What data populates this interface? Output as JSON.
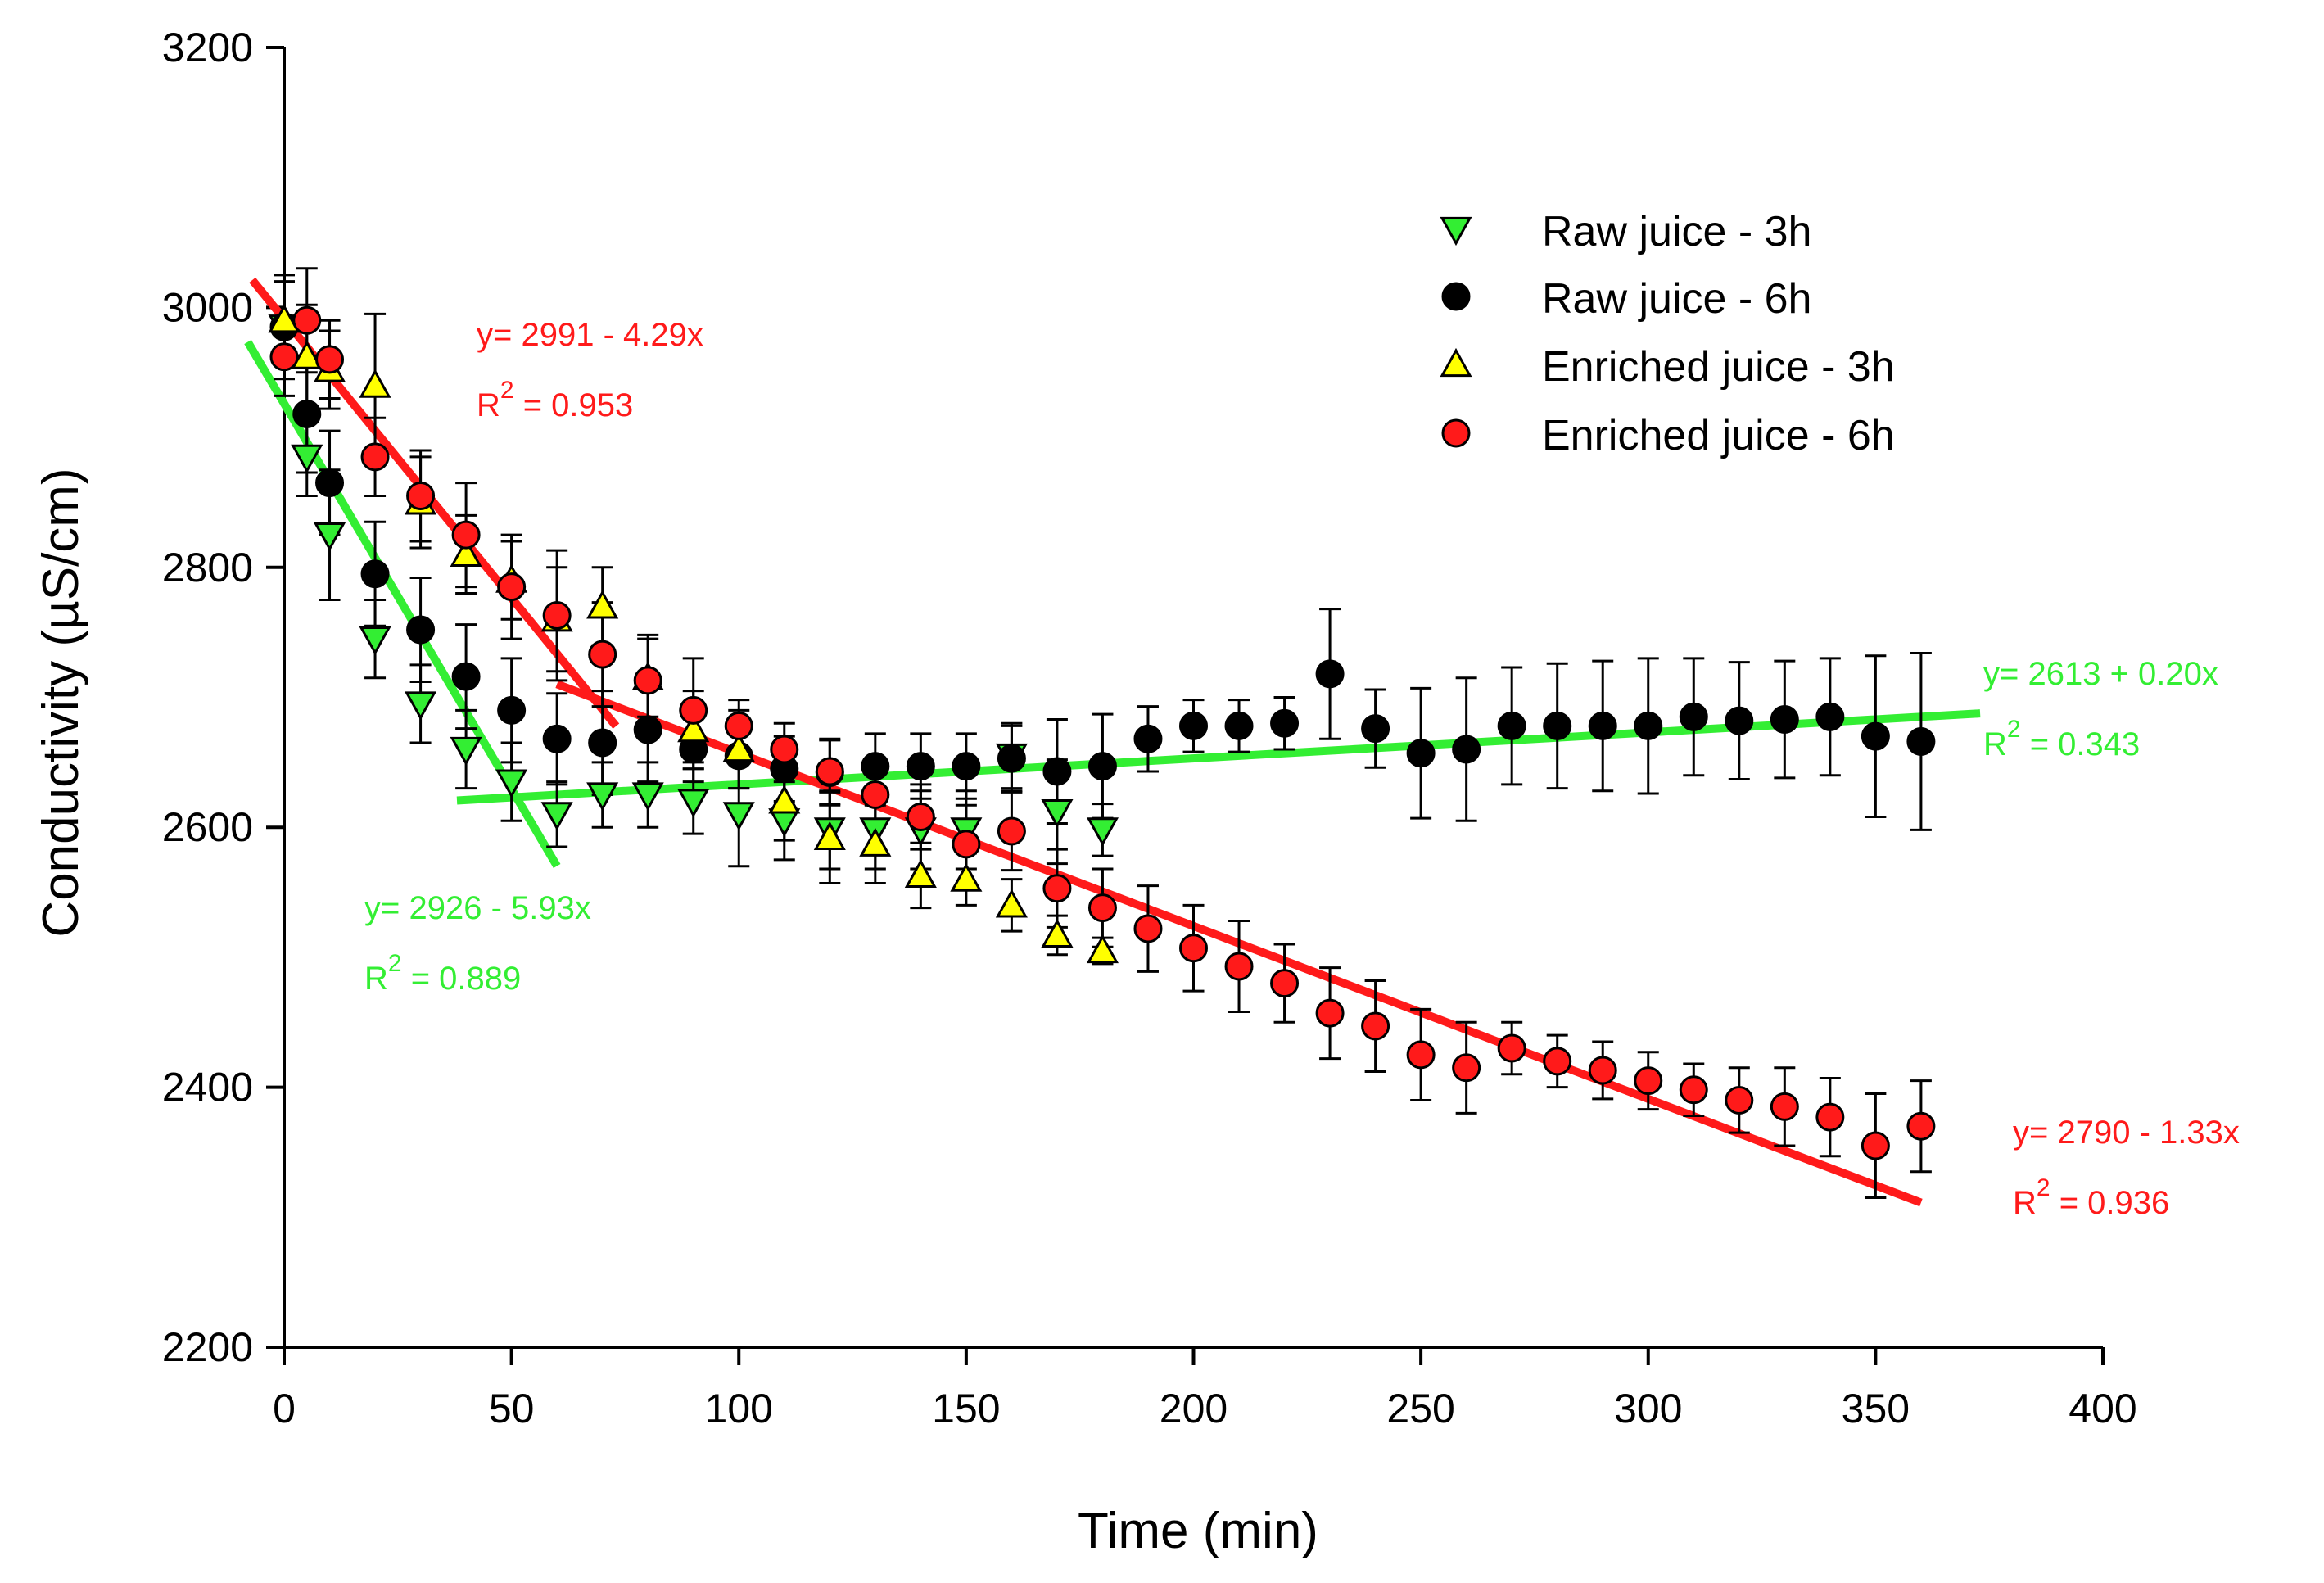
{
  "chart_data": {
    "type": "scatter",
    "title": "",
    "xlabel": "Time (min)",
    "ylabel": "Conductivity (µS/cm)",
    "xlim": [
      0,
      400
    ],
    "ylim": [
      2200,
      3200
    ],
    "xticks": [
      0,
      50,
      100,
      150,
      200,
      250,
      300,
      350,
      400
    ],
    "yticks": [
      2200,
      2400,
      2600,
      2800,
      3000,
      3200
    ],
    "grid": false,
    "legend_position": "top-right",
    "colors": {
      "green": "#33ee33",
      "red": "#ff1a1a",
      "yellow": "#ffff00",
      "black": "#000000"
    },
    "series": [
      {
        "name": "Raw juice - 3h",
        "marker": "triangle-down",
        "color": "#33ee33",
        "x": [
          0,
          5,
          10,
          20,
          30,
          40,
          50,
          60,
          70,
          80,
          90,
          100,
          110,
          120,
          130,
          140,
          150,
          160,
          170,
          180
        ],
        "y": [
          2985,
          2885,
          2825,
          2745,
          2695,
          2660,
          2635,
          2610,
          2625,
          2625,
          2620,
          2610,
          2605,
          2598,
          2598,
          2598,
          2598,
          2655,
          2612,
          2598
        ],
        "err": [
          40,
          30,
          50,
          30,
          30,
          30,
          30,
          25,
          25,
          25,
          25,
          40,
          30,
          30,
          30,
          30,
          30,
          25,
          40,
          20
        ]
      },
      {
        "name": "Raw juice - 6h",
        "marker": "circle",
        "color": "#000000",
        "x": [
          0,
          5,
          10,
          20,
          30,
          40,
          50,
          60,
          70,
          80,
          90,
          100,
          110,
          120,
          130,
          140,
          150,
          160,
          170,
          180,
          190,
          200,
          210,
          220,
          230,
          240,
          250,
          260,
          270,
          280,
          290,
          300,
          310,
          320,
          330,
          340,
          350,
          360
        ],
        "y": [
          2985,
          2918,
          2865,
          2795,
          2752,
          2716,
          2690,
          2668,
          2665,
          2675,
          2660,
          2655,
          2645,
          2642,
          2647,
          2647,
          2647,
          2653,
          2643,
          2647,
          2668,
          2678,
          2678,
          2680,
          2718,
          2676,
          2657,
          2660,
          2678,
          2678,
          2678,
          2678,
          2685,
          2682,
          2683,
          2685,
          2670,
          2666
        ],
        "err": [
          40,
          45,
          40,
          40,
          40,
          40,
          40,
          35,
          40,
          40,
          25,
          25,
          25,
          25,
          25,
          25,
          25,
          25,
          40,
          40,
          25,
          20,
          20,
          20,
          50,
          30,
          50,
          55,
          45,
          48,
          50,
          52,
          45,
          45,
          45,
          45,
          62,
          68
        ]
      },
      {
        "name": "Enriched juice - 3h",
        "marker": "triangle-up",
        "color": "#ffff00",
        "x": [
          0,
          5,
          10,
          20,
          30,
          40,
          50,
          60,
          70,
          80,
          90,
          100,
          110,
          120,
          130,
          140,
          150,
          160,
          170,
          180
        ],
        "y": [
          2990,
          2962,
          2952,
          2940,
          2850,
          2810,
          2790,
          2760,
          2770,
          2715,
          2675,
          2660,
          2620,
          2592,
          2587,
          2563,
          2560,
          2540,
          2517,
          2505
        ],
        "err": [
          30,
          40,
          30,
          55,
          35,
          30,
          30,
          40,
          30,
          30,
          30,
          30,
          30,
          35,
          30,
          25,
          20,
          20,
          15,
          10
        ]
      },
      {
        "name": "Enriched juice - 6h",
        "marker": "circle",
        "color": "#ff1a1a",
        "x": [
          0,
          5,
          10,
          20,
          30,
          40,
          50,
          60,
          70,
          80,
          90,
          100,
          110,
          120,
          130,
          140,
          150,
          160,
          170,
          180,
          190,
          200,
          210,
          220,
          230,
          240,
          250,
          260,
          270,
          280,
          290,
          300,
          310,
          320,
          330,
          340,
          350,
          360
        ],
        "y": [
          2962,
          2990,
          2960,
          2885,
          2855,
          2825,
          2785,
          2763,
          2733,
          2713,
          2690,
          2678,
          2660,
          2643,
          2625,
          2608,
          2587,
          2597,
          2553,
          2538,
          2522,
          2507,
          2493,
          2480,
          2457,
          2447,
          2425,
          2415,
          2430,
          2420,
          2413,
          2405,
          2398,
          2390,
          2385,
          2377,
          2355,
          2370
        ],
        "err": [
          30,
          40,
          30,
          30,
          35,
          40,
          40,
          50,
          40,
          35,
          40,
          20,
          20,
          25,
          25,
          25,
          30,
          30,
          30,
          30,
          33,
          33,
          35,
          30,
          35,
          35,
          35,
          35,
          20,
          20,
          22,
          22,
          20,
          25,
          30,
          30,
          40,
          35
        ]
      }
    ],
    "fits": [
      {
        "series": "Raw juice - 3h",
        "color": "#33ee33",
        "x_range": [
          -8,
          60
        ],
        "intercept": 2926,
        "slope": -5.93,
        "equation": "y= 2926 - 5.93x",
        "r2_base": "R",
        "r2_exp": "2",
        "r2_value": " = 0.889"
      },
      {
        "series": "Raw juice - 6h",
        "color": "#33ee33",
        "x_range": [
          38,
          373
        ],
        "intercept": 2613,
        "slope": 0.2,
        "equation": "y= 2613 + 0.20x",
        "r2_base": "R",
        "r2_exp": "2",
        "r2_value": " = 0.343"
      },
      {
        "series": "Enriched juice - 6h",
        "color": "#ff1a1a",
        "x_range": [
          -7,
          73
        ],
        "intercept": 2991,
        "slope": -4.29,
        "equation": "y= 2991 - 4.29x",
        "r2_base": "R",
        "r2_exp": "2",
        "r2_value": " = 0.953"
      },
      {
        "series": "Enriched juice - 6h",
        "color": "#ff1a1a",
        "x_range": [
          60,
          360
        ],
        "intercept": 2790,
        "slope": -1.33,
        "equation": "y= 2790 - 1.33x",
        "r2_base": "R",
        "r2_exp": "2",
        "r2_value": " = 0.936"
      }
    ],
    "annotations": [
      {
        "fit": 2,
        "equation": "y= 2991 - 4.29x",
        "r2": "R² = 0.953",
        "color": "#ff1a1a"
      },
      {
        "fit": 0,
        "equation": "y= 2926 - 5.93x",
        "r2": "R² = 0.889",
        "color": "#33ee33"
      },
      {
        "fit": 1,
        "equation": "y= 2613 + 0.20x",
        "r2": "R² = 0.343",
        "color": "#33ee33"
      },
      {
        "fit": 3,
        "equation": "y= 2790 - 1.33x",
        "r2": "R² = 0.936",
        "color": "#ff1a1a"
      }
    ]
  }
}
